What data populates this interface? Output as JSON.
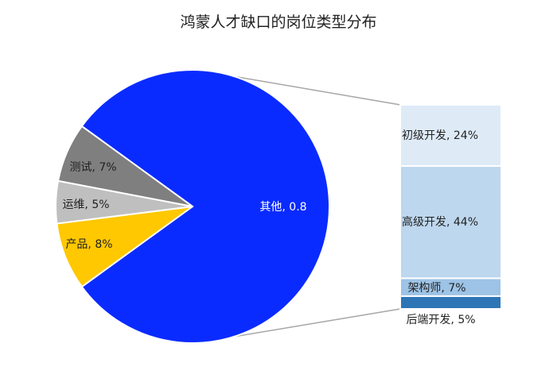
{
  "chart_data": {
    "type": "bar-of-pie",
    "title": "鸿蒙人才缺口的岗位类型分布",
    "pie": {
      "slices": [
        {
          "label": "其他, 0.8",
          "value": 0.8,
          "color": "#0a2bff"
        },
        {
          "label": "产品, 8%",
          "value": 0.08,
          "color": "#ffc800"
        },
        {
          "label": "运维, 5%",
          "value": 0.05,
          "color": "#bfbfbf"
        },
        {
          "label": "测试, 7%",
          "value": 0.07,
          "color": "#7f7f7f"
        }
      ]
    },
    "bar": {
      "segments": [
        {
          "label": "初级开发, 24%",
          "value": 0.24,
          "color": "#deebf7"
        },
        {
          "label": "高级开发, 44%",
          "value": 0.44,
          "color": "#bdd7ee"
        },
        {
          "label": "架构师, 7%",
          "value": 0.07,
          "color": "#9dc3e6"
        },
        {
          "label": "后端开发, 5%",
          "value": 0.05,
          "color": "#2e75b6"
        }
      ]
    },
    "legend": "none"
  }
}
